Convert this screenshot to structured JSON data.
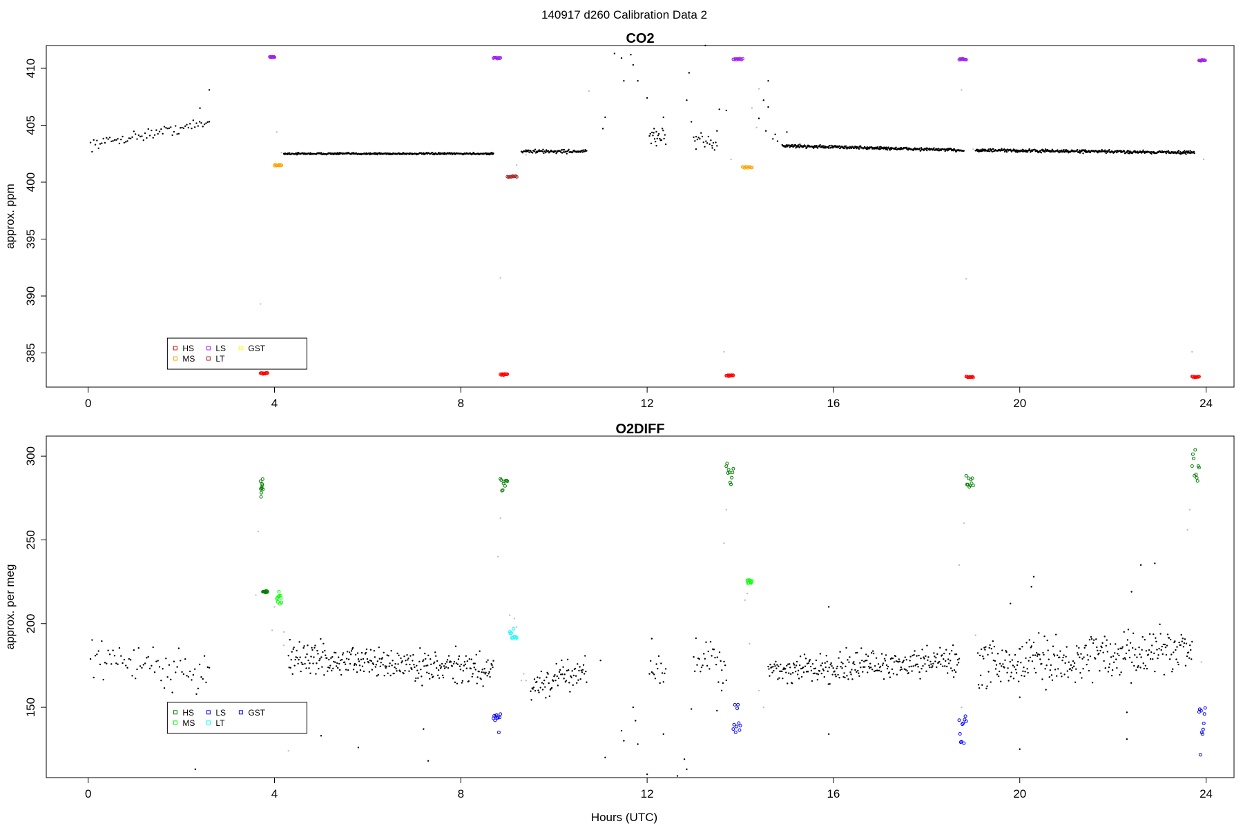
{
  "figure": {
    "suptitle": "140917   d260   Calibration Data 2",
    "xlabel": "Hours (UTC)"
  },
  "chart_data": [
    {
      "type": "scatter",
      "title": "CO2",
      "xlabel": "",
      "ylabel": "approx. ppm",
      "xlim": [
        -0.9,
        24.6
      ],
      "ylim": [
        382.0,
        412.0
      ],
      "xticks": [
        0,
        4,
        8,
        12,
        16,
        20,
        24
      ],
      "yticks": [
        385,
        390,
        395,
        400,
        405,
        410
      ],
      "legend": {
        "position": "bottom-left",
        "entries": [
          {
            "label": "HS",
            "color": "#ff0000"
          },
          {
            "label": "MS",
            "color": "#ffa500"
          },
          {
            "label": "LS",
            "color": "#a020f0"
          },
          {
            "label": "LT",
            "color": "#a52a2a"
          },
          {
            "label": "GST",
            "color": "#ffff00"
          }
        ]
      },
      "colors": {
        "data": "#000000",
        "flagged": "#bebebe"
      },
      "segments": [
        {
          "x0": 0.05,
          "x1": 2.6,
          "y0": 403.3,
          "y1": 405.2,
          "jitter": 0.35,
          "n": 75
        },
        {
          "x0": 4.2,
          "x1": 8.7,
          "y0": 402.5,
          "y1": 402.5,
          "jitter": 0.06,
          "n": 400
        },
        {
          "x0": 9.3,
          "x1": 10.7,
          "y0": 402.7,
          "y1": 402.7,
          "jitter": 0.12,
          "n": 100
        },
        {
          "x0": 12.05,
          "x1": 12.4,
          "y0": 404.0,
          "y1": 404.0,
          "jitter": 0.6,
          "n": 20
        },
        {
          "x0": 13.0,
          "x1": 13.5,
          "y0": 403.5,
          "y1": 403.5,
          "jitter": 0.5,
          "n": 20
        },
        {
          "x0": 14.9,
          "x1": 18.8,
          "y0": 403.2,
          "y1": 402.8,
          "jitter": 0.1,
          "n": 360
        },
        {
          "x0": 19.05,
          "x1": 23.75,
          "y0": 402.8,
          "y1": 402.6,
          "jitter": 0.1,
          "n": 420
        }
      ],
      "black_points": [
        {
          "x": 2.6,
          "y": 408.1
        },
        {
          "x": 2.4,
          "y": 406.5
        },
        {
          "x": 11.05,
          "y": 404.7
        },
        {
          "x": 11.1,
          "y": 405.7
        },
        {
          "x": 11.3,
          "y": 411.3
        },
        {
          "x": 11.45,
          "y": 410.9
        },
        {
          "x": 11.5,
          "y": 408.9
        },
        {
          "x": 11.65,
          "y": 411.2
        },
        {
          "x": 11.7,
          "y": 410.3
        },
        {
          "x": 11.8,
          "y": 408.9
        },
        {
          "x": 12.0,
          "y": 407.4
        },
        {
          "x": 12.15,
          "y": 404.7
        },
        {
          "x": 12.2,
          "y": 403.2
        },
        {
          "x": 12.35,
          "y": 405.7
        },
        {
          "x": 12.85,
          "y": 407.2
        },
        {
          "x": 12.9,
          "y": 409.6
        },
        {
          "x": 12.95,
          "y": 405.3
        },
        {
          "x": 13.05,
          "y": 402.9
        },
        {
          "x": 13.25,
          "y": 412.0
        },
        {
          "x": 13.5,
          "y": 404.5
        },
        {
          "x": 13.55,
          "y": 406.4
        },
        {
          "x": 13.7,
          "y": 406.3
        },
        {
          "x": 13.4,
          "y": 403.0
        },
        {
          "x": 14.4,
          "y": 405.6
        },
        {
          "x": 14.5,
          "y": 407.2
        },
        {
          "x": 14.6,
          "y": 406.6
        },
        {
          "x": 14.6,
          "y": 408.9
        },
        {
          "x": 14.55,
          "y": 404.5
        },
        {
          "x": 14.7,
          "y": 403.8
        },
        {
          "x": 14.75,
          "y": 404.2
        },
        {
          "x": 14.8,
          "y": 403.6
        },
        {
          "x": 15.0,
          "y": 404.4
        }
      ],
      "gray_points": [
        {
          "x": 3.7,
          "y": 389.3
        },
        {
          "x": 4.05,
          "y": 404.4
        },
        {
          "x": 4.15,
          "y": 402.6
        },
        {
          "x": 8.85,
          "y": 391.6
        },
        {
          "x": 9.2,
          "y": 401.5
        },
        {
          "x": 9.4,
          "y": 402.4
        },
        {
          "x": 10.75,
          "y": 408.0
        },
        {
          "x": 13.65,
          "y": 385.1
        },
        {
          "x": 13.8,
          "y": 402.0
        },
        {
          "x": 14.35,
          "y": 404.8
        },
        {
          "x": 14.4,
          "y": 408.2
        },
        {
          "x": 14.25,
          "y": 406.5
        },
        {
          "x": 18.75,
          "y": 408.1
        },
        {
          "x": 18.85,
          "y": 391.5
        },
        {
          "x": 19.0,
          "y": 402.9
        },
        {
          "x": 23.7,
          "y": 385.1
        },
        {
          "x": 23.95,
          "y": 402.0
        }
      ],
      "cal_points": [
        {
          "label": "LS",
          "color": "#a020f0",
          "x0": 3.9,
          "x1": 4.0,
          "y": 411.0
        },
        {
          "label": "MS",
          "color": "#ffa500",
          "x0": 4.0,
          "x1": 4.15,
          "y": 401.5
        },
        {
          "label": "HS",
          "color": "#ff0000",
          "x0": 3.7,
          "x1": 3.85,
          "y": 383.2
        },
        {
          "label": "LS",
          "color": "#a020f0",
          "x0": 8.7,
          "x1": 8.85,
          "y": 410.9
        },
        {
          "label": "HS",
          "color": "#ff0000",
          "x0": 8.85,
          "x1": 9.0,
          "y": 383.1
        },
        {
          "label": "LT",
          "color": "#a52a2a",
          "x0": 9.0,
          "x1": 9.2,
          "y": 400.5
        },
        {
          "label": "LS",
          "color": "#a020f0",
          "x0": 13.85,
          "x1": 14.05,
          "y": 410.8
        },
        {
          "label": "HS",
          "color": "#ff0000",
          "x0": 13.7,
          "x1": 13.85,
          "y": 383.0
        },
        {
          "label": "MS",
          "color": "#ffa500",
          "x0": 14.05,
          "x1": 14.25,
          "y": 401.3
        },
        {
          "label": "LS",
          "color": "#a020f0",
          "x0": 18.7,
          "x1": 18.85,
          "y": 410.8
        },
        {
          "label": "HS",
          "color": "#ff0000",
          "x0": 18.85,
          "x1": 19.0,
          "y": 382.9
        },
        {
          "label": "LS",
          "color": "#a020f0",
          "x0": 23.85,
          "x1": 23.98,
          "y": 410.7
        },
        {
          "label": "HS",
          "color": "#ff0000",
          "x0": 23.7,
          "x1": 23.85,
          "y": 382.9
        }
      ]
    },
    {
      "type": "scatter",
      "title": "O2DIFF",
      "xlabel": "Hours (UTC)",
      "ylabel": "approx. per meg",
      "xlim": [
        -0.9,
        24.6
      ],
      "ylim": [
        108,
        312
      ],
      "xticks": [
        0,
        4,
        8,
        12,
        16,
        20,
        24
      ],
      "yticks": [
        150,
        200,
        250,
        300
      ],
      "legend": {
        "position": "bottom-left",
        "entries": [
          {
            "label": "HS",
            "color": "#008000"
          },
          {
            "label": "MS",
            "color": "#00ff00"
          },
          {
            "label": "LS",
            "color": "#0000ff"
          },
          {
            "label": "LT",
            "color": "#00ffff"
          },
          {
            "label": "GST",
            "color": "#0000ff"
          }
        ]
      },
      "colors": {
        "data": "#000000",
        "flagged": "#bebebe"
      },
      "segments": [
        {
          "x0": 0.05,
          "x1": 2.6,
          "y0": 180,
          "y1": 170,
          "jitter": 9,
          "n": 75
        },
        {
          "x0": 4.3,
          "x1": 8.7,
          "y0": 180,
          "y1": 172,
          "jitter": 7,
          "n": 300
        },
        {
          "x0": 9.5,
          "x1": 10.7,
          "y0": 162,
          "y1": 172,
          "jitter": 6,
          "n": 75
        },
        {
          "x0": 12.05,
          "x1": 12.4,
          "y0": 173,
          "y1": 173,
          "jitter": 6,
          "n": 15
        },
        {
          "x0": 13.0,
          "x1": 13.7,
          "y0": 180,
          "y1": 178,
          "jitter": 10,
          "n": 30
        },
        {
          "x0": 14.6,
          "x1": 18.7,
          "y0": 172,
          "y1": 178,
          "jitter": 6,
          "n": 280
        },
        {
          "x0": 19.1,
          "x1": 23.7,
          "y0": 175,
          "y1": 185,
          "jitter": 10,
          "n": 300
        }
      ],
      "black_points": [
        {
          "x": 2.3,
          "y": 113
        },
        {
          "x": 5.0,
          "y": 133
        },
        {
          "x": 5.8,
          "y": 126
        },
        {
          "x": 7.3,
          "y": 118
        },
        {
          "x": 7.2,
          "y": 137
        },
        {
          "x": 11.0,
          "y": 178
        },
        {
          "x": 11.1,
          "y": 120
        },
        {
          "x": 11.45,
          "y": 136
        },
        {
          "x": 11.5,
          "y": 130
        },
        {
          "x": 11.7,
          "y": 150
        },
        {
          "x": 11.75,
          "y": 142
        },
        {
          "x": 11.8,
          "y": 128
        },
        {
          "x": 12.0,
          "y": 110
        },
        {
          "x": 12.1,
          "y": 191
        },
        {
          "x": 12.35,
          "y": 134
        },
        {
          "x": 12.65,
          "y": 109
        },
        {
          "x": 12.8,
          "y": 119
        },
        {
          "x": 12.85,
          "y": 113
        },
        {
          "x": 12.95,
          "y": 149
        },
        {
          "x": 13.5,
          "y": 148
        },
        {
          "x": 13.6,
          "y": 160
        },
        {
          "x": 15.9,
          "y": 210
        },
        {
          "x": 15.9,
          "y": 134
        },
        {
          "x": 20.0,
          "y": 125
        },
        {
          "x": 20.25,
          "y": 222
        },
        {
          "x": 20.3,
          "y": 228
        },
        {
          "x": 20.0,
          "y": 156
        },
        {
          "x": 22.3,
          "y": 131
        },
        {
          "x": 22.3,
          "y": 147
        },
        {
          "x": 22.4,
          "y": 219
        },
        {
          "x": 22.6,
          "y": 235
        },
        {
          "x": 22.9,
          "y": 236
        },
        {
          "x": 19.8,
          "y": 212
        }
      ],
      "gray_points": [
        {
          "x": 3.65,
          "y": 255
        },
        {
          "x": 3.6,
          "y": 217
        },
        {
          "x": 3.95,
          "y": 196
        },
        {
          "x": 4.0,
          "y": 210
        },
        {
          "x": 4.2,
          "y": 195
        },
        {
          "x": 4.2,
          "y": 187
        },
        {
          "x": 4.3,
          "y": 124
        },
        {
          "x": 8.8,
          "y": 240
        },
        {
          "x": 8.85,
          "y": 263
        },
        {
          "x": 9.05,
          "y": 205
        },
        {
          "x": 9.15,
          "y": 203
        },
        {
          "x": 9.2,
          "y": 198
        },
        {
          "x": 9.3,
          "y": 166
        },
        {
          "x": 9.35,
          "y": 170
        },
        {
          "x": 9.4,
          "y": 166
        },
        {
          "x": 13.65,
          "y": 248
        },
        {
          "x": 13.7,
          "y": 268
        },
        {
          "x": 14.1,
          "y": 214
        },
        {
          "x": 14.15,
          "y": 218
        },
        {
          "x": 14.2,
          "y": 188
        },
        {
          "x": 14.4,
          "y": 160
        },
        {
          "x": 14.5,
          "y": 150
        },
        {
          "x": 18.7,
          "y": 235
        },
        {
          "x": 18.75,
          "y": 150
        },
        {
          "x": 18.8,
          "y": 260
        },
        {
          "x": 19.05,
          "y": 193
        },
        {
          "x": 23.6,
          "y": 256
        },
        {
          "x": 23.65,
          "y": 268
        },
        {
          "x": 23.9,
          "y": 177
        }
      ],
      "cal_points": [
        {
          "label": "HS",
          "color": "#008000",
          "x0": 3.7,
          "x1": 3.75,
          "y": 281,
          "spread": 6
        },
        {
          "label": "HS",
          "color": "#008000",
          "x0": 3.75,
          "x1": 3.85,
          "y": 219,
          "spread": 0.5
        },
        {
          "label": "MS",
          "color": "#00ff00",
          "x0": 4.05,
          "x1": 4.15,
          "y": 215,
          "spread": 6
        },
        {
          "label": "HS",
          "color": "#008000",
          "x0": 8.85,
          "x1": 9.0,
          "y": 283,
          "spread": 4
        },
        {
          "label": "LS",
          "color": "#0000ff",
          "x0": 8.7,
          "x1": 8.85,
          "y": 140,
          "spread": 6
        },
        {
          "label": "LT",
          "color": "#00ffff",
          "x0": 9.05,
          "x1": 9.2,
          "y": 194,
          "spread": 3
        },
        {
          "label": "HS",
          "color": "#008000",
          "x0": 13.7,
          "x1": 13.85,
          "y": 287,
          "spread": 9
        },
        {
          "label": "LS",
          "color": "#0000ff",
          "x0": 13.85,
          "x1": 14.0,
          "y": 144,
          "spread": 9
        },
        {
          "label": "MS",
          "color": "#00ff00",
          "x0": 14.15,
          "x1": 14.25,
          "y": 225,
          "spread": 1
        },
        {
          "label": "HS",
          "color": "#008000",
          "x0": 18.85,
          "x1": 19.0,
          "y": 284,
          "spread": 5
        },
        {
          "label": "LS",
          "color": "#0000ff",
          "x0": 18.7,
          "x1": 18.85,
          "y": 137,
          "spread": 9
        },
        {
          "label": "HS",
          "color": "#008000",
          "x0": 23.7,
          "x1": 23.85,
          "y": 293,
          "spread": 11
        },
        {
          "label": "LS",
          "color": "#0000ff",
          "x0": 23.85,
          "x1": 23.98,
          "y": 135,
          "spread": 15
        }
      ]
    }
  ]
}
